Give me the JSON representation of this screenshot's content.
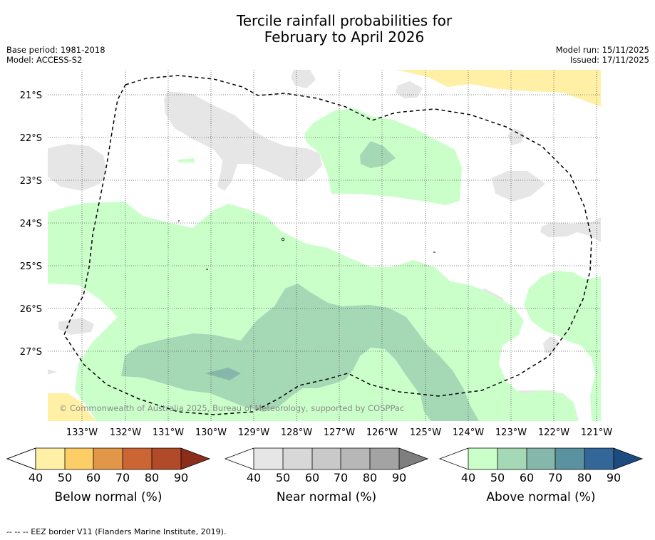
{
  "title_line1": "Tercile rainfall probabilities for",
  "title_line2": "February to April 2026",
  "meta": {
    "base_period": "Base period: 1981-2018",
    "model": "Model: ACCESS-S2",
    "model_run": "Model run: 15/11/2025",
    "issued": "Issued: 17/11/2025"
  },
  "copyright": "© Commonwealth of Australia 2025, Bureau of Meteorology, supported by COSPPac",
  "footer": "-- -- -- EEZ border V11 (Flanders Marine Institute, 2019).",
  "lat_labels": [
    "21°S",
    "22°S",
    "23°S",
    "24°S",
    "25°S",
    "26°S",
    "27°S"
  ],
  "lon_labels": [
    "133°W",
    "132°W",
    "131°W",
    "130°W",
    "129°W",
    "128°W",
    "127°W",
    "126°W",
    "125°W",
    "124°W",
    "123°W",
    "122°W",
    "121°W"
  ],
  "colorbars": [
    {
      "name": "below",
      "label": "Below normal (%)",
      "colors": [
        "#fff0a6",
        "#fdcd66",
        "#e29647",
        "#cc6534",
        "#b14a28"
      ],
      "end_color": "#8c2d1c",
      "ticks": [
        "40",
        "50",
        "60",
        "70",
        "80",
        "90"
      ]
    },
    {
      "name": "near",
      "label": "Near normal (%)",
      "colors": [
        "#e6e6e6",
        "#d8d8d8",
        "#c9c9c9",
        "#b7b7b7",
        "#a3a3a3"
      ],
      "end_color": "#7f7f7f",
      "ticks": [
        "40",
        "50",
        "60",
        "70",
        "80",
        "90"
      ]
    },
    {
      "name": "above",
      "label": "Above normal (%)",
      "colors": [
        "#caffca",
        "#a5d8b4",
        "#85b8ab",
        "#5a929f",
        "#336699"
      ],
      "end_color": "#1c4b80",
      "ticks": [
        "40",
        "50",
        "60",
        "70",
        "80",
        "90"
      ]
    }
  ],
  "colors": {
    "below40": "#fff0a6",
    "near40": "#e6e6e6",
    "above40": "#caffca",
    "above50": "#a5d8b4",
    "above60": "#85b8ab",
    "grid": "#555555"
  }
}
